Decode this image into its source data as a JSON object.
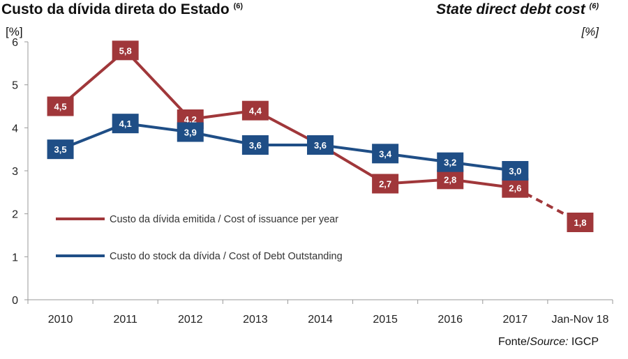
{
  "header": {
    "title_pt": "Custo da dívida direta do Estado",
    "title_pt_note": "(6)",
    "title_en": "State direct debt cost",
    "title_en_note": "(6)",
    "unit_left": "[%]",
    "unit_right": "[%]"
  },
  "source": {
    "prefix": "Fonte/",
    "italic": "Source:",
    "name": " IGCP"
  },
  "colors": {
    "issuance": "#a0373a",
    "outstanding": "#1f4e86",
    "axis": "#999999"
  },
  "chart_data": {
    "type": "line",
    "title": "Custo da dívida direta do Estado / State direct debt cost",
    "xlabel": "",
    "ylabel": "[%]",
    "categories": [
      "2010",
      "2011",
      "2012",
      "2013",
      "2014",
      "2015",
      "2016",
      "2017",
      "Jan-Nov 18"
    ],
    "ylim": [
      0,
      6
    ],
    "yticks": [
      0,
      1,
      2,
      3,
      4,
      5,
      6
    ],
    "grid": false,
    "legend_position": "bottom-left",
    "series": [
      {
        "name": "Custo da dívida emitida / Cost of issuance per year",
        "values": [
          4.5,
          5.8,
          4.2,
          4.4,
          3.6,
          2.7,
          2.8,
          2.6,
          1.8
        ],
        "labels": [
          "4,5",
          "5,8",
          "4,2",
          "4,4",
          "3,6",
          "2,7",
          "2,8",
          "2,6",
          "1,8"
        ],
        "show_label": [
          true,
          true,
          true,
          true,
          false,
          true,
          true,
          true,
          true
        ],
        "dashed_from_index": 7,
        "color": "#a0373a"
      },
      {
        "name": "Custo do stock da dívida / Cost of Debt Outstanding",
        "values": [
          3.5,
          4.1,
          3.9,
          3.6,
          3.6,
          3.4,
          3.2,
          3.0,
          null
        ],
        "labels": [
          "3,5",
          "4,1",
          "3,9",
          "3,6",
          "3,6",
          "3,4",
          "3,2",
          "3,0",
          ""
        ],
        "show_label": [
          true,
          true,
          true,
          true,
          true,
          true,
          true,
          true,
          false
        ],
        "dashed_from_index": null,
        "color": "#1f4e86"
      }
    ]
  }
}
